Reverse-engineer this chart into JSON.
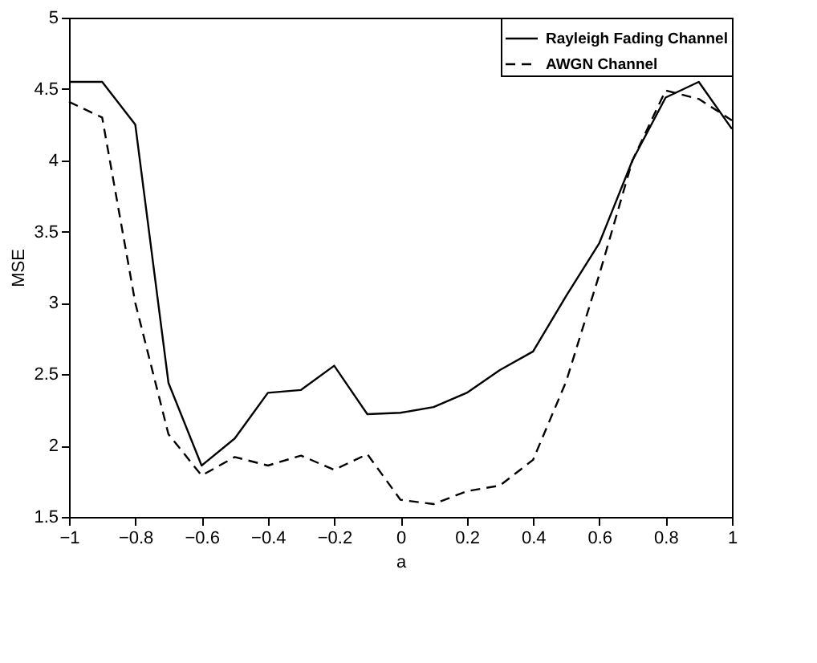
{
  "chart_data": {
    "type": "line",
    "xlabel": "a",
    "ylabel": "MSE",
    "x": [
      -1,
      -0.9,
      -0.8,
      -0.7,
      -0.6,
      -0.5,
      -0.4,
      -0.3,
      -0.2,
      -0.1,
      0,
      0.1,
      0.2,
      0.3,
      0.4,
      0.5,
      0.6,
      0.7,
      0.8,
      0.9,
      1
    ],
    "series": [
      {
        "name": "Rayleigh Fading Channel",
        "color": "#000000",
        "line_style": "solid",
        "values": [
          4.55,
          4.55,
          4.25,
          2.44,
          1.86,
          2.05,
          2.37,
          2.39,
          2.56,
          2.22,
          2.23,
          2.27,
          2.37,
          2.53,
          2.66,
          3.05,
          3.42,
          4.0,
          4.44,
          4.55,
          4.22
        ]
      },
      {
        "name": "AWGN Channel",
        "color": "#000000",
        "line_style": "dashed",
        "values": [
          4.41,
          4.3,
          3.0,
          2.08,
          1.79,
          1.92,
          1.86,
          1.93,
          1.83,
          1.94,
          1.62,
          1.59,
          1.68,
          1.72,
          1.9,
          2.45,
          3.2,
          4.0,
          4.49,
          4.43,
          4.28
        ]
      }
    ],
    "xlim": [
      -1,
      1
    ],
    "xticks": [
      -1,
      -0.8,
      -0.6,
      -0.4,
      -0.2,
      0,
      0.2,
      0.4,
      0.6,
      0.8,
      1
    ],
    "ylim": [
      1.5,
      5
    ],
    "yticks": [
      1.5,
      2,
      2.5,
      3,
      3.5,
      4,
      4.5,
      5
    ],
    "grid": false,
    "legend": "top right",
    "marker": "none"
  }
}
